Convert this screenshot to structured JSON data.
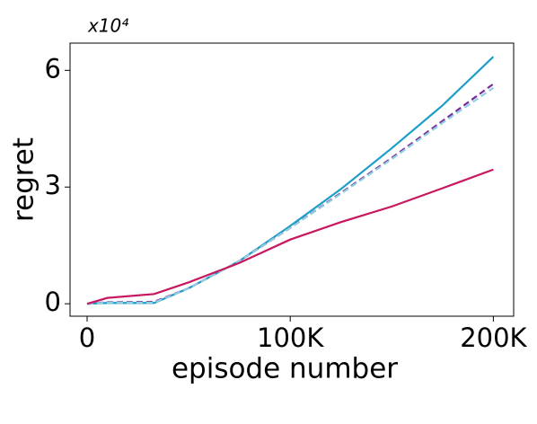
{
  "chart_data": {
    "type": "line",
    "x_label": "episode number",
    "y_label": "regret",
    "y_scale_label": "x10⁴",
    "x": [
      0,
      10000,
      33000,
      50000,
      75000,
      100000,
      125000,
      150000,
      175000,
      200000
    ],
    "series": [
      {
        "color": "#1b9ec9",
        "linestyle": "solid",
        "values": [
          0,
          0.02,
          0.02,
          0.4,
          1.1,
          2.0,
          2.95,
          4.0,
          5.1,
          6.35
        ]
      },
      {
        "color": "#7b2a9c",
        "linestyle": "dashed",
        "values": [
          0,
          0.04,
          0.05,
          0.4,
          1.1,
          1.95,
          2.85,
          3.75,
          4.7,
          5.65
        ]
      },
      {
        "color": "#8fd0e0",
        "linestyle": "dashed",
        "values": [
          0,
          0.03,
          0.03,
          0.4,
          1.1,
          1.95,
          2.83,
          3.72,
          4.65,
          5.55
        ]
      },
      {
        "color": "#c8175f",
        "linestyle": "solid",
        "values": [
          0,
          0.15,
          0.25,
          0.55,
          1.05,
          1.65,
          2.1,
          2.5,
          2.97,
          3.45
        ]
      }
    ],
    "xlim": [
      -8400,
      210000
    ],
    "xticks": [
      0,
      {
        "value": 100000,
        "label": "100K"
      },
      {
        "value": 200000,
        "label": "200K"
      }
    ],
    "ylim": [
      -0.32,
      6.7
    ],
    "yticks": [
      0,
      3,
      6
    ]
  }
}
